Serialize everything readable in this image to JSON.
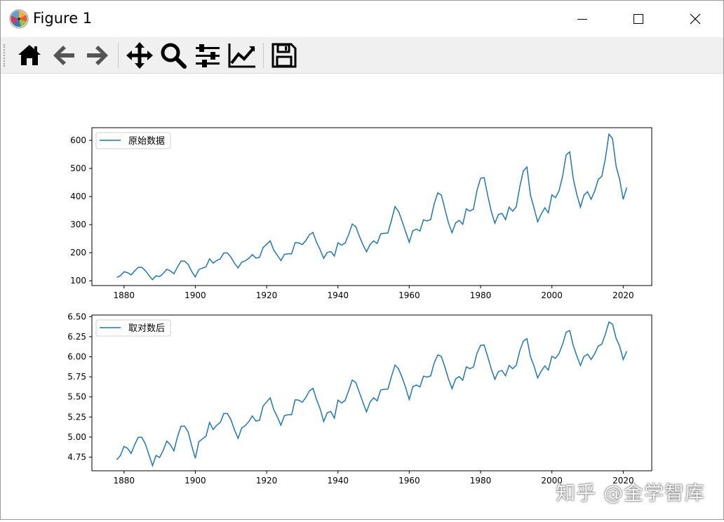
{
  "window": {
    "title": "Figure 1",
    "icon": "matplotlib-logo-icon",
    "controls": [
      "minimize-icon",
      "maximize-icon",
      "close-icon"
    ]
  },
  "toolbar": {
    "buttons": [
      {
        "name": "home-button",
        "icon": "home-icon"
      },
      {
        "name": "back-button",
        "icon": "arrow-left-icon"
      },
      {
        "name": "forward-button",
        "icon": "arrow-right-icon"
      },
      {
        "name": "pan-button",
        "icon": "move-icon"
      },
      {
        "name": "zoom-button",
        "icon": "magnifier-icon"
      },
      {
        "name": "subplots-button",
        "icon": "sliders-icon"
      },
      {
        "name": "edit-axis-button",
        "icon": "line-chart-icon"
      },
      {
        "name": "save-button",
        "icon": "floppy-disk-icon"
      }
    ]
  },
  "colors": {
    "line": "#1f77b4"
  },
  "watermark": "知乎 @金学智库",
  "chart_data": [
    {
      "type": "line",
      "legend": "原始数据",
      "legend_loc": "upper-left",
      "xlim": [
        1871,
        2028
      ],
      "ylim": [
        83,
        645
      ],
      "xticks": [
        1880,
        1900,
        1920,
        1940,
        1960,
        1980,
        2000,
        2020
      ],
      "yticks": [
        100,
        200,
        300,
        400,
        500,
        600
      ],
      "ytick_labels": [
        "100",
        "200",
        "300",
        "400",
        "500",
        "600"
      ],
      "x_start": 1878,
      "x_step": 1,
      "values": [
        112,
        118,
        132,
        129,
        121,
        135,
        148,
        148,
        136,
        119,
        104,
        118,
        115,
        126,
        141,
        135,
        125,
        149,
        170,
        170,
        158,
        133,
        114,
        140,
        145,
        150,
        178,
        163,
        172,
        178,
        199,
        199,
        184,
        162,
        146,
        166,
        171,
        180,
        193,
        181,
        183,
        218,
        230,
        242,
        209,
        191,
        172,
        194,
        196,
        196,
        236,
        235,
        229,
        243,
        264,
        272,
        237,
        211,
        180,
        201,
        204,
        188,
        235,
        227,
        234,
        264,
        302,
        293,
        259,
        229,
        203,
        229,
        242,
        233,
        267,
        269,
        270,
        315,
        364,
        347,
        312,
        274,
        237,
        278,
        284,
        277,
        317,
        313,
        318,
        374,
        413,
        405,
        355,
        306,
        271,
        306,
        315,
        301,
        356,
        348,
        355,
        422,
        465,
        467,
        404,
        347,
        305,
        336,
        340,
        318,
        362,
        348,
        363,
        435,
        491,
        505,
        404,
        359,
        310,
        337,
        360,
        342,
        406,
        396,
        420,
        472,
        548,
        559,
        463,
        407,
        362,
        405,
        417,
        390,
        419,
        461,
        472,
        535,
        622,
        606,
        508,
        461,
        390,
        432
      ]
    },
    {
      "type": "line",
      "legend": "取对数后",
      "legend_loc": "upper-left",
      "xlim": [
        1871,
        2028
      ],
      "ylim": [
        4.58,
        6.52
      ],
      "xticks": [
        1880,
        1900,
        1920,
        1940,
        1960,
        1980,
        2000,
        2020
      ],
      "yticks": [
        4.75,
        5.0,
        5.25,
        5.5,
        5.75,
        6.0,
        6.25,
        6.5
      ],
      "ytick_labels": [
        "4.75",
        "5.00",
        "5.25",
        "5.50",
        "5.75",
        "6.00",
        "6.25",
        "6.50"
      ],
      "x_start": 1878,
      "x_step": 1,
      "values": [
        4.718,
        4.771,
        4.883,
        4.86,
        4.796,
        4.905,
        4.997,
        4.997,
        4.913,
        4.779,
        4.644,
        4.771,
        4.745,
        4.836,
        4.949,
        4.905,
        4.828,
        5.004,
        5.136,
        5.136,
        5.063,
        4.89,
        4.736,
        4.942,
        4.977,
        5.011,
        5.182,
        5.094,
        5.147,
        5.182,
        5.293,
        5.293,
        5.215,
        5.088,
        4.984,
        5.112,
        5.142,
        5.193,
        5.263,
        5.198,
        5.209,
        5.385,
        5.438,
        5.489,
        5.342,
        5.252,
        5.148,
        5.268,
        5.278,
        5.278,
        5.464,
        5.46,
        5.434,
        5.493,
        5.576,
        5.606,
        5.468,
        5.352,
        5.193,
        5.303,
        5.318,
        5.236,
        5.46,
        5.425,
        5.455,
        5.576,
        5.71,
        5.68,
        5.557,
        5.434,
        5.313,
        5.434,
        5.489,
        5.451,
        5.587,
        5.595,
        5.598,
        5.753,
        5.897,
        5.849,
        5.743,
        5.613,
        5.468,
        5.628,
        5.649,
        5.624,
        5.759,
        5.746,
        5.762,
        5.924,
        6.023,
        6.004,
        5.872,
        5.724,
        5.602,
        5.724,
        5.753,
        5.707,
        5.875,
        5.852,
        5.872,
        6.045,
        6.142,
        6.146,
        6.001,
        5.849,
        5.72,
        5.817,
        5.829,
        5.762,
        5.892,
        5.852,
        5.894,
        6.075,
        6.196,
        6.225,
        6.001,
        5.883,
        5.736,
        5.82,
        5.886,
        5.835,
        6.006,
        5.981,
        6.04,
        6.157,
        6.306,
        6.326,
        6.138,
        6.009,
        5.892,
        6.004,
        6.033,
        5.966,
        6.038,
        6.133,
        6.157,
        6.283,
        6.433,
        6.407,
        6.231,
        6.133,
        5.966,
        6.068
      ]
    }
  ]
}
